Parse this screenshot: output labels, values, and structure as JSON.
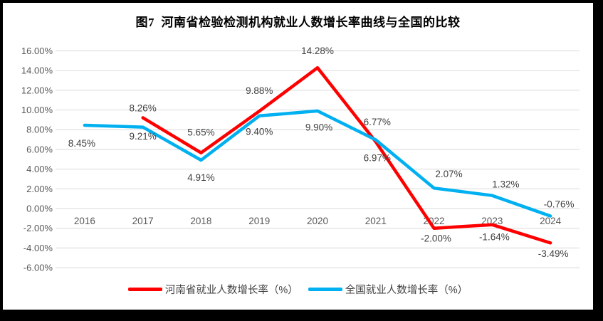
{
  "title": "图7  河南省检验检测机构就业人数增长率曲线与全国的比较",
  "colors": {
    "henan": "#FF0000",
    "national": "#00B0F0",
    "grid": "#D9D9D9",
    "axis_text": "#595959",
    "label_text": "#404040",
    "title_text": "#000000",
    "frame_border": "#000000"
  },
  "chart_data": {
    "type": "line",
    "title": "图7  河南省检验检测机构就业人数增长率曲线与全国的比较",
    "categories": [
      "2016",
      "2017",
      "2018",
      "2019",
      "2020",
      "2021",
      "2022",
      "2023",
      "2024"
    ],
    "y_ticks": [
      "16.00%",
      "14.00%",
      "12.00%",
      "10.00%",
      "8.00%",
      "6.00%",
      "4.00%",
      "2.00%",
      "0.00%",
      "-2.00%",
      "-4.00%",
      "-6.00%"
    ],
    "y_max": 16,
    "y_min": -6,
    "y_step": 2,
    "grid": true,
    "legend_position": "bottom",
    "series": [
      {
        "name": "河南省就业人数增长率（%）",
        "color_key": "henan",
        "values": [
          null,
          9.21,
          5.65,
          9.88,
          14.28,
          6.77,
          -2.0,
          -1.64,
          -3.49
        ],
        "labels": [
          null,
          "9.21%",
          "5.65%",
          "9.88%",
          "14.28%",
          "6.77%",
          "-2.00%",
          "-1.64%",
          "-3.49%"
        ],
        "label_offsets": [
          null,
          [
            0,
            26
          ],
          [
            0,
            -29
          ],
          [
            0,
            -29
          ],
          [
            0,
            -24
          ],
          [
            2,
            -28
          ],
          [
            3,
            14
          ],
          [
            3,
            17
          ],
          [
            4,
            15
          ]
        ]
      },
      {
        "name": "全国就业人数增长率（%）",
        "color_key": "national",
        "values": [
          8.45,
          8.26,
          4.91,
          9.4,
          9.9,
          6.97,
          2.07,
          1.32,
          -0.76
        ],
        "labels": [
          "8.45%",
          "8.26%",
          "4.91%",
          "9.40%",
          "9.90%",
          "6.97%",
          "2.07%",
          "1.32%",
          "-0.76%"
        ],
        "label_offsets": [
          [
            -4,
            25
          ],
          [
            0,
            -27
          ],
          [
            0,
            24
          ],
          [
            0,
            22
          ],
          [
            2,
            23
          ],
          [
            2,
            25
          ],
          [
            21,
            -20
          ],
          [
            19,
            -16
          ],
          [
            12,
            -17
          ]
        ]
      }
    ]
  },
  "legend": {
    "items": [
      {
        "label": "河南省就业人数增长率（%）"
      },
      {
        "label": "全国就业人数增长率（%）"
      }
    ]
  }
}
